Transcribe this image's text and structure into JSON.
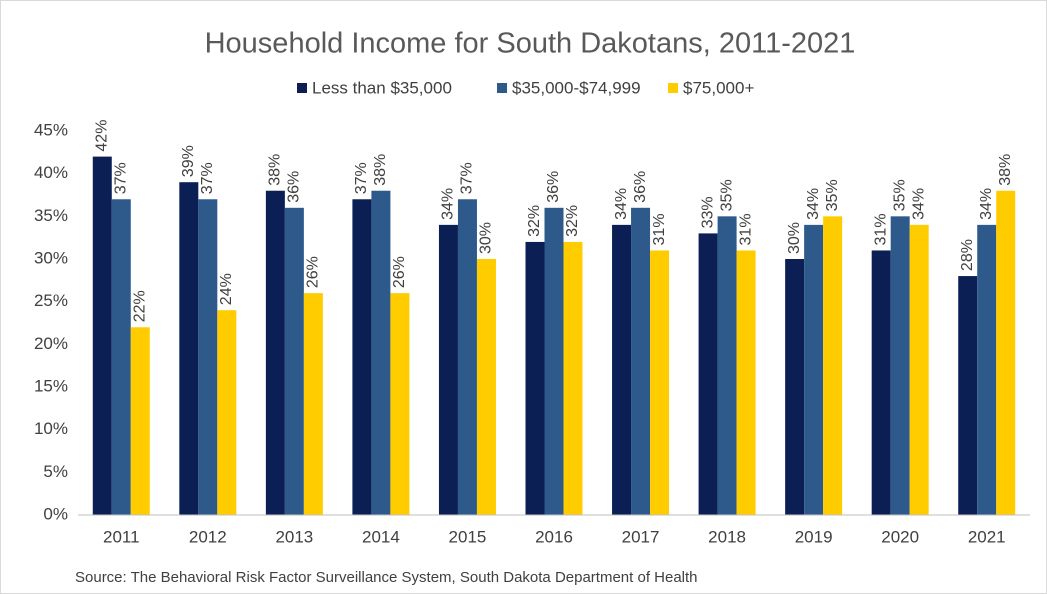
{
  "chart_data": {
    "type": "bar",
    "title": "Household Income for South Dakotans, 2011-2021",
    "source": "Source: The Behavioral Risk Factor Surveillance System, South Dakota Department of Health",
    "categories": [
      "2011",
      "2012",
      "2013",
      "2014",
      "2015",
      "2016",
      "2017",
      "2018",
      "2019",
      "2020",
      "2021"
    ],
    "series": [
      {
        "name": "Less than $35,000",
        "color": "#0b1f55",
        "values": [
          42,
          39,
          38,
          37,
          34,
          32,
          34,
          33,
          30,
          31,
          28
        ],
        "value_labels": [
          "42%",
          "39%",
          "38%",
          "37%",
          "34%",
          "32%",
          "34%",
          "33%",
          "30%",
          "31%",
          "28%"
        ]
      },
      {
        "name": "$35,000-$74,999",
        "color": "#2d5a8b",
        "values": [
          37,
          37,
          36,
          38,
          37,
          36,
          36,
          35,
          34,
          35,
          34
        ],
        "value_labels": [
          "37%",
          "37%",
          "36%",
          "38%",
          "37%",
          "36%",
          "36%",
          "35%",
          "34%",
          "35%",
          "34%"
        ]
      },
      {
        "name": "$75,000+",
        "color": "#ffcc00",
        "values": [
          22,
          24,
          26,
          26,
          30,
          32,
          31,
          31,
          35,
          34,
          38
        ],
        "value_labels": [
          "22%",
          "24%",
          "26%",
          "26%",
          "30%",
          "32%",
          "31%",
          "31%",
          "35%",
          "34%",
          "38%"
        ]
      }
    ],
    "ylim": [
      0,
      45
    ],
    "yticks": [
      {
        "value": 0,
        "label": "0%"
      },
      {
        "value": 5,
        "label": "5%"
      },
      {
        "value": 10,
        "label": "10%"
      },
      {
        "value": 15,
        "label": "15%"
      },
      {
        "value": 20,
        "label": "20%"
      },
      {
        "value": 25,
        "label": "25%"
      },
      {
        "value": 30,
        "label": "30%"
      },
      {
        "value": 35,
        "label": "35%"
      },
      {
        "value": 40,
        "label": "40%"
      },
      {
        "value": 45,
        "label": "45%"
      }
    ],
    "grid": false,
    "legend": "top"
  }
}
